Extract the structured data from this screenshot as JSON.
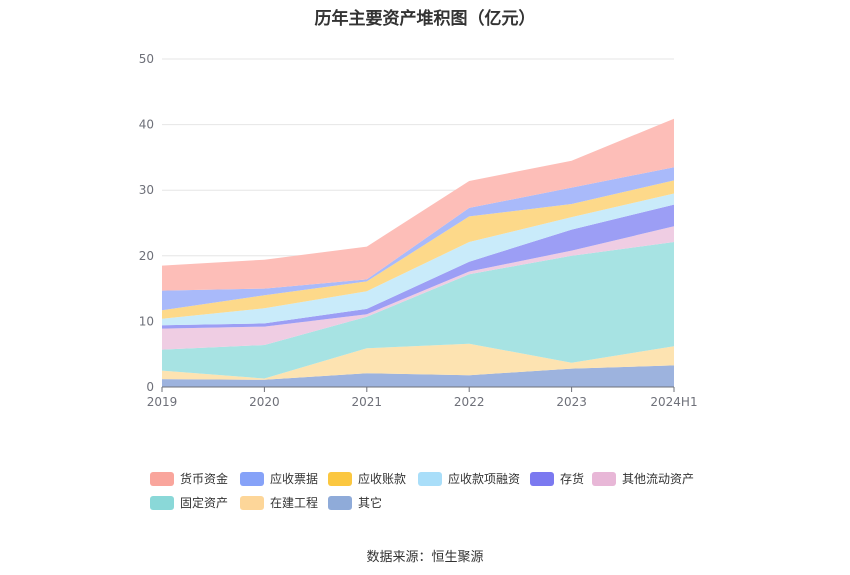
{
  "chart_data": {
    "type": "area",
    "stacked": true,
    "title": "历年主要资产堆积图（亿元）",
    "categories": [
      "2019",
      "2020",
      "2021",
      "2022",
      "2023",
      "2024H1"
    ],
    "ylim": [
      0,
      50
    ],
    "yticks": [
      0,
      10,
      20,
      30,
      40,
      50
    ],
    "grid": true,
    "legend_position": "bottom",
    "series": [
      {
        "name": "其它",
        "color": "#9db3de",
        "values": [
          1.2,
          1.1,
          2.1,
          1.8,
          2.8,
          3.3
        ]
      },
      {
        "name": "在建工程",
        "color": "#fde3b1",
        "values": [
          1.3,
          0.2,
          3.8,
          4.8,
          0.9,
          2.9
        ]
      },
      {
        "name": "固定资产",
        "color": "#a7e3e3",
        "values": [
          3.2,
          5.1,
          4.8,
          10.6,
          16.3,
          15.9
        ]
      },
      {
        "name": "其他流动资产",
        "color": "#efcde3",
        "values": [
          3.2,
          2.8,
          0.4,
          0.4,
          0.8,
          2.4
        ]
      },
      {
        "name": "存货",
        "color": "#9c9ef5",
        "values": [
          0.5,
          0.5,
          0.8,
          1.5,
          3.2,
          3.3
        ]
      },
      {
        "name": "应收款项融资",
        "color": "#c9ebfa",
        "values": [
          1.0,
          2.3,
          2.7,
          3.0,
          1.9,
          1.7
        ]
      },
      {
        "name": "应收账款",
        "color": "#fdd98a",
        "values": [
          1.3,
          2.0,
          1.5,
          3.9,
          2.0,
          2.0
        ]
      },
      {
        "name": "应收票据",
        "color": "#a9bafa",
        "values": [
          3.0,
          1.0,
          0.3,
          1.3,
          2.5,
          2.0
        ]
      },
      {
        "name": "货币资金",
        "color": "#fdbeb8",
        "values": [
          3.8,
          4.4,
          5.0,
          4.1,
          4.1,
          7.4
        ]
      }
    ]
  },
  "legend": [
    {
      "label": "货币资金",
      "color": "#f9a59c"
    },
    {
      "label": "应收票据",
      "color": "#86a2f8"
    },
    {
      "label": "应收账款",
      "color": "#fbc740"
    },
    {
      "label": "应收款项融资",
      "color": "#a9def9"
    },
    {
      "label": "存货",
      "color": "#7b79f0"
    },
    {
      "label": "其他流动资产",
      "color": "#e8b7d7"
    },
    {
      "label": "固定资产",
      "color": "#8ad8d8"
    },
    {
      "label": "在建工程",
      "color": "#fdd699"
    },
    {
      "label": "其它",
      "color": "#8fabd9"
    }
  ],
  "source": "数据来源：恒生聚源"
}
